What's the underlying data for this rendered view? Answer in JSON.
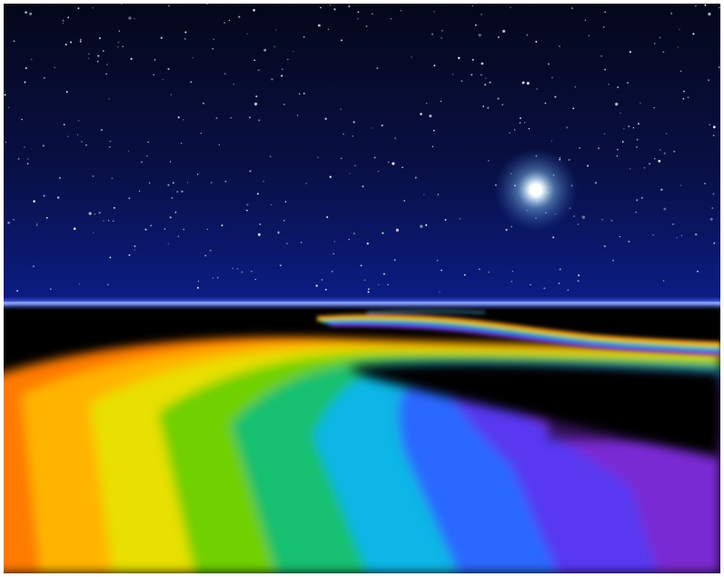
{
  "scene": {
    "colors": {
      "frame": "#ffffff",
      "sky_top": "#05071a",
      "sky_bottom": "#0a1a7a",
      "horizon": "#6f8cff",
      "ground": "#000000",
      "star_core": "#ffffff",
      "star_glow": "#9fd4ff"
    },
    "rainbow_colors": [
      "#ff6a00",
      "#ffb000",
      "#f2e000",
      "#7fd000",
      "#18c070",
      "#10b8e8",
      "#2a6cff",
      "#5a3cf0",
      "#7a2ad0"
    ],
    "elements": [
      "starry-sky",
      "bright-star",
      "horizon-line",
      "rainbow-road",
      "dark-ground"
    ]
  }
}
